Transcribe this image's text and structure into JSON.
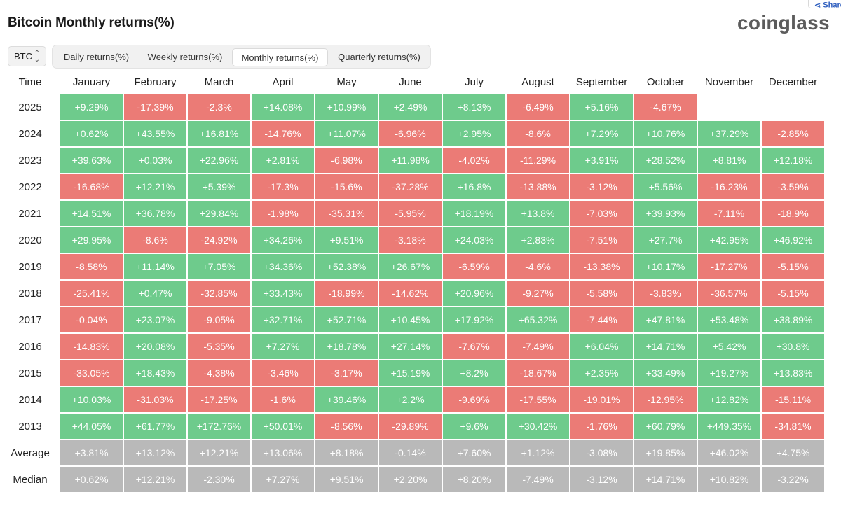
{
  "title": "Bitcoin Monthly returns(%)",
  "brand": "coinglass",
  "share_label": "Share",
  "coin_select": {
    "value": "BTC",
    "icon": "chevron-updown-icon"
  },
  "tabs": [
    {
      "label": "Daily returns(%)",
      "active": false
    },
    {
      "label": "Weekly returns(%)",
      "active": false
    },
    {
      "label": "Monthly returns(%)",
      "active": true
    },
    {
      "label": "Quarterly returns(%)",
      "active": false
    }
  ],
  "colors": {
    "positive": "#6ecb8c",
    "negative": "#eb7b76",
    "summary": "#b9b9b9"
  },
  "table": {
    "headers": [
      "Time",
      "January",
      "February",
      "March",
      "April",
      "May",
      "June",
      "July",
      "August",
      "September",
      "October",
      "November",
      "December"
    ],
    "rows": [
      {
        "label": "2025",
        "cells": [
          "+9.29%",
          "-17.39%",
          "-2.3%",
          "+14.08%",
          "+10.99%",
          "+2.49%",
          "+8.13%",
          "-6.49%",
          "+5.16%",
          "-4.67%",
          "",
          ""
        ]
      },
      {
        "label": "2024",
        "cells": [
          "+0.62%",
          "+43.55%",
          "+16.81%",
          "-14.76%",
          "+11.07%",
          "-6.96%",
          "+2.95%",
          "-8.6%",
          "+7.29%",
          "+10.76%",
          "+37.29%",
          "-2.85%"
        ]
      },
      {
        "label": "2023",
        "cells": [
          "+39.63%",
          "+0.03%",
          "+22.96%",
          "+2.81%",
          "-6.98%",
          "+11.98%",
          "-4.02%",
          "-11.29%",
          "+3.91%",
          "+28.52%",
          "+8.81%",
          "+12.18%"
        ]
      },
      {
        "label": "2022",
        "cells": [
          "-16.68%",
          "+12.21%",
          "+5.39%",
          "-17.3%",
          "-15.6%",
          "-37.28%",
          "+16.8%",
          "-13.88%",
          "-3.12%",
          "+5.56%",
          "-16.23%",
          "-3.59%"
        ]
      },
      {
        "label": "2021",
        "cells": [
          "+14.51%",
          "+36.78%",
          "+29.84%",
          "-1.98%",
          "-35.31%",
          "-5.95%",
          "+18.19%",
          "+13.8%",
          "-7.03%",
          "+39.93%",
          "-7.11%",
          "-18.9%"
        ]
      },
      {
        "label": "2020",
        "cells": [
          "+29.95%",
          "-8.6%",
          "-24.92%",
          "+34.26%",
          "+9.51%",
          "-3.18%",
          "+24.03%",
          "+2.83%",
          "-7.51%",
          "+27.7%",
          "+42.95%",
          "+46.92%"
        ]
      },
      {
        "label": "2019",
        "cells": [
          "-8.58%",
          "+11.14%",
          "+7.05%",
          "+34.36%",
          "+52.38%",
          "+26.67%",
          "-6.59%",
          "-4.6%",
          "-13.38%",
          "+10.17%",
          "-17.27%",
          "-5.15%"
        ]
      },
      {
        "label": "2018",
        "cells": [
          "-25.41%",
          "+0.47%",
          "-32.85%",
          "+33.43%",
          "-18.99%",
          "-14.62%",
          "+20.96%",
          "-9.27%",
          "-5.58%",
          "-3.83%",
          "-36.57%",
          "-5.15%"
        ]
      },
      {
        "label": "2017",
        "cells": [
          "-0.04%",
          "+23.07%",
          "-9.05%",
          "+32.71%",
          "+52.71%",
          "+10.45%",
          "+17.92%",
          "+65.32%",
          "-7.44%",
          "+47.81%",
          "+53.48%",
          "+38.89%"
        ]
      },
      {
        "label": "2016",
        "cells": [
          "-14.83%",
          "+20.08%",
          "-5.35%",
          "+7.27%",
          "+18.78%",
          "+27.14%",
          "-7.67%",
          "-7.49%",
          "+6.04%",
          "+14.71%",
          "+5.42%",
          "+30.8%"
        ]
      },
      {
        "label": "2015",
        "cells": [
          "-33.05%",
          "+18.43%",
          "-4.38%",
          "-3.46%",
          "-3.17%",
          "+15.19%",
          "+8.2%",
          "-18.67%",
          "+2.35%",
          "+33.49%",
          "+19.27%",
          "+13.83%"
        ]
      },
      {
        "label": "2014",
        "cells": [
          "+10.03%",
          "-31.03%",
          "-17.25%",
          "-1.6%",
          "+39.46%",
          "+2.2%",
          "-9.69%",
          "-17.55%",
          "-19.01%",
          "-12.95%",
          "+12.82%",
          "-15.11%"
        ]
      },
      {
        "label": "2013",
        "cells": [
          "+44.05%",
          "+61.77%",
          "+172.76%",
          "+50.01%",
          "-8.56%",
          "-29.89%",
          "+9.6%",
          "+30.42%",
          "-1.76%",
          "+60.79%",
          "+449.35%",
          "-34.81%"
        ]
      }
    ],
    "summary_rows": [
      {
        "label": "Average",
        "cells": [
          "+3.81%",
          "+13.12%",
          "+12.21%",
          "+13.06%",
          "+8.18%",
          "-0.14%",
          "+7.60%",
          "+1.12%",
          "-3.08%",
          "+19.85%",
          "+46.02%",
          "+4.75%"
        ]
      },
      {
        "label": "Median",
        "cells": [
          "+0.62%",
          "+12.21%",
          "-2.30%",
          "+7.27%",
          "+9.51%",
          "+2.20%",
          "+8.20%",
          "-7.49%",
          "-3.12%",
          "+14.71%",
          "+10.82%",
          "-3.22%"
        ]
      }
    ]
  }
}
